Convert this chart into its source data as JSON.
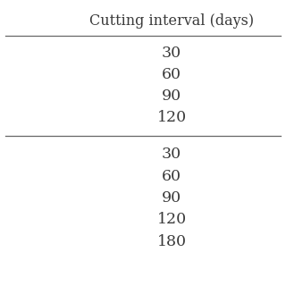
{
  "header": "Cutting interval (days)",
  "group1": [
    "30",
    "60",
    "90",
    "120"
  ],
  "group2": [
    "30",
    "60",
    "90",
    "120",
    "180"
  ],
  "background_color": "#ffffff",
  "text_color": "#3a3a3a",
  "line_color": "#666666",
  "header_fontsize": 11.5,
  "cell_fontsize": 12.5,
  "fig_width": 3.2,
  "fig_height": 3.2,
  "dpi": 100
}
